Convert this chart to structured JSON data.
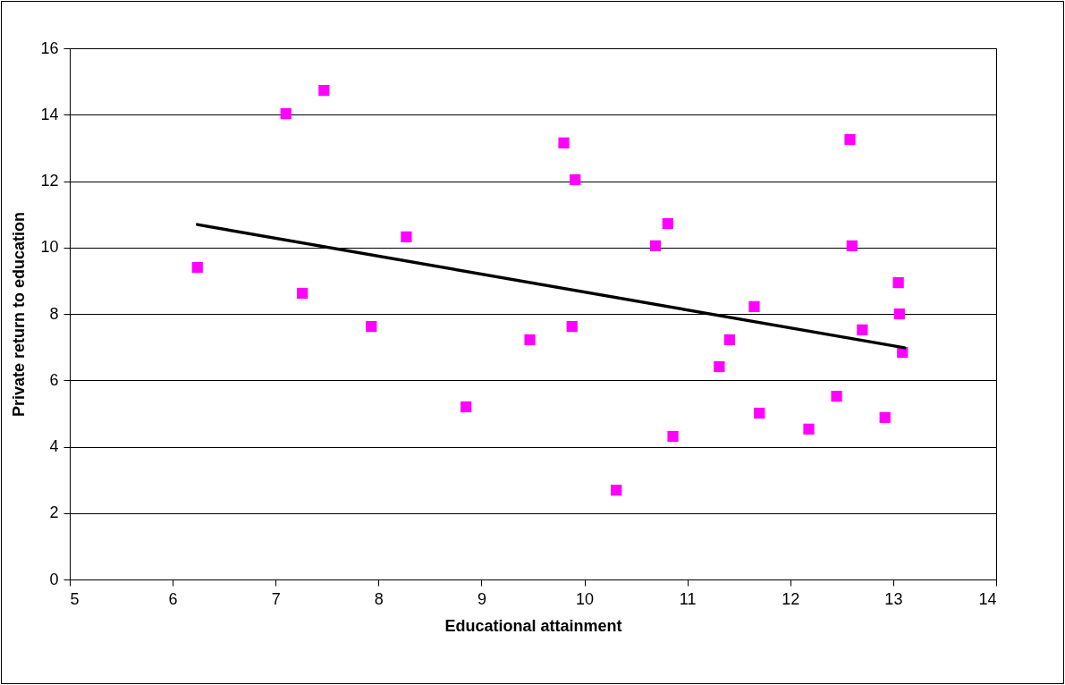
{
  "chart_data": {
    "type": "scatter",
    "xlabel": "Educational attainment",
    "ylabel": "Private return to education",
    "xlim": [
      5,
      14
    ],
    "xticks": [
      5,
      6,
      7,
      8,
      9,
      10,
      11,
      12,
      13,
      14
    ],
    "ylim": [
      0,
      16
    ],
    "yticks": [
      0,
      2,
      4,
      6,
      8,
      10,
      12,
      14,
      16
    ],
    "grid": "y",
    "series": [
      {
        "color": "#ff00ff",
        "marker": "square",
        "x": [
          6.24,
          7.1,
          7.47,
          7.26,
          7.93,
          8.27,
          8.85,
          9.47,
          9.8,
          9.91,
          9.88,
          10.31,
          10.69,
          10.81,
          10.86,
          11.31,
          11.41,
          11.65,
          11.7,
          12.18,
          12.45,
          12.58,
          12.6,
          12.7,
          12.92,
          13.05,
          13.06,
          13.09
        ],
        "values": [
          9.4,
          14.03,
          14.73,
          8.62,
          7.62,
          10.32,
          5.2,
          7.22,
          13.15,
          12.04,
          7.62,
          2.69,
          10.05,
          10.72,
          4.31,
          6.41,
          7.22,
          8.22,
          5.01,
          4.53,
          5.52,
          13.25,
          10.05,
          7.52,
          4.88,
          8.94,
          8.0,
          6.84
        ]
      },
      {
        "type": "line",
        "color": "#000000",
        "marker": "none",
        "x": [
          6.24,
          13.11
        ],
        "values": [
          10.69,
          6.98
        ]
      }
    ]
  }
}
